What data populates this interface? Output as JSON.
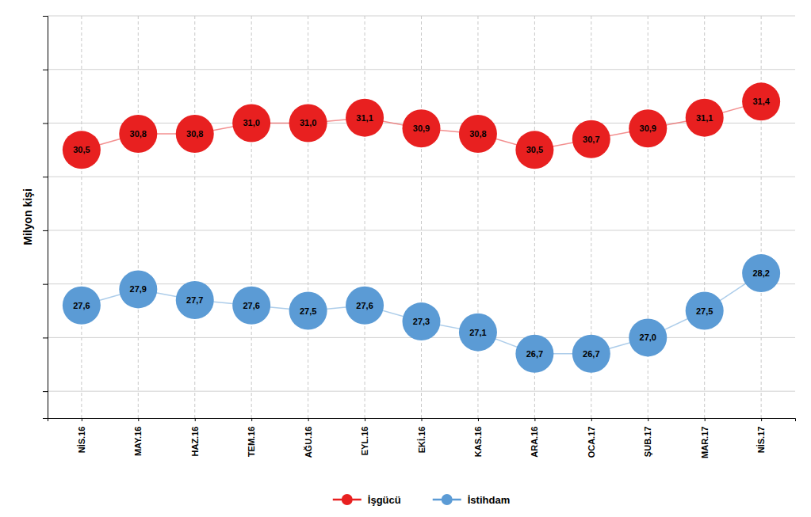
{
  "chart_data": {
    "type": "line",
    "categories": [
      "NİS.16",
      "MAY.16",
      "HAZ.16",
      "TEM.16",
      "AĞU.16",
      "EYL.16",
      "EKİ.16",
      "KAS.16",
      "ARA.16",
      "OCA.17",
      "ŞUB.17",
      "MAR.17",
      "NİS.17"
    ],
    "series": [
      {
        "name": "İşgücü",
        "color": "#e82020",
        "marker": "circle",
        "values": [
          30.5,
          30.8,
          30.8,
          31.0,
          31.0,
          31.1,
          30.9,
          30.8,
          30.5,
          30.7,
          30.9,
          31.1,
          31.4
        ],
        "value_labels": [
          "30,5",
          "30,8",
          "30,8",
          "31,0",
          "31,0",
          "31,1",
          "30,9",
          "30,8",
          "30,5",
          "30,7",
          "30,9",
          "31,1",
          "31,4"
        ]
      },
      {
        "name": "İstihdam",
        "color": "#5b9bd5",
        "marker": "circle",
        "values": [
          27.6,
          27.9,
          27.7,
          27.6,
          27.5,
          27.6,
          27.3,
          27.1,
          26.7,
          26.7,
          27.0,
          27.5,
          28.2
        ],
        "value_labels": [
          "27,6",
          "27,9",
          "27,7",
          "27,6",
          "27,5",
          "27,6",
          "27,3",
          "27,1",
          "26,7",
          "26,7",
          "27,0",
          "27,5",
          "28,2"
        ]
      }
    ],
    "ylabel": "Milyon kişi",
    "ylim": [
      25.5,
      33.0
    ],
    "yticks": [
      26,
      27,
      28,
      29,
      30,
      31,
      32,
      33
    ],
    "grid": true,
    "tick_labels": "x",
    "data_labels": true,
    "legend": "bottom"
  }
}
